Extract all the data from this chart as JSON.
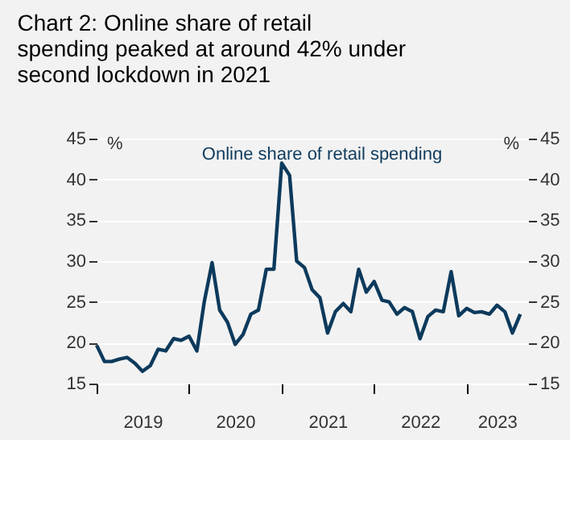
{
  "chart_data": {
    "type": "line",
    "title": "Chart 2: Online share of retail spending peaked at around 42% under second lockdown in 2021",
    "ylabel": "%",
    "y2label": "%",
    "x": [
      "2019-01",
      "2019-02",
      "2019-03",
      "2019-04",
      "2019-05",
      "2019-06",
      "2019-07",
      "2019-08",
      "2019-09",
      "2019-10",
      "2019-11",
      "2019-12",
      "2020-01",
      "2020-02",
      "2020-03",
      "2020-04",
      "2020-05",
      "2020-06",
      "2020-07",
      "2020-08",
      "2020-09",
      "2020-10",
      "2020-11",
      "2020-12",
      "2021-01",
      "2021-02",
      "2021-03",
      "2021-04",
      "2021-05",
      "2021-06",
      "2021-07",
      "2021-08",
      "2021-09",
      "2021-10",
      "2021-11",
      "2021-12",
      "2022-01",
      "2022-02",
      "2022-03",
      "2022-04",
      "2022-05",
      "2022-06",
      "2022-07",
      "2022-08",
      "2022-09",
      "2022-10",
      "2022-11",
      "2022-12",
      "2023-01",
      "2023-02",
      "2023-03",
      "2023-04",
      "2023-05",
      "2023-06",
      "2023-07",
      "2023-08"
    ],
    "series": [
      {
        "name": "Online share of retail spending",
        "color": "#0d3a5c",
        "values": [
          19.7,
          17.7,
          17.7,
          18.0,
          18.2,
          17.5,
          16.5,
          17.2,
          19.2,
          19.0,
          20.5,
          20.3,
          20.8,
          19.0,
          25.0,
          29.8,
          24.0,
          22.5,
          19.8,
          21.0,
          23.5,
          24.0,
          29.0,
          29.0,
          42.0,
          40.5,
          30.0,
          29.2,
          26.5,
          25.5,
          21.2,
          23.8,
          24.8,
          23.8,
          29.0,
          26.2,
          27.5,
          25.2,
          25.0,
          23.5,
          24.3,
          23.8,
          20.5,
          23.2,
          24.0,
          23.8,
          28.7,
          23.3,
          24.2,
          23.7,
          23.8,
          23.5,
          24.6,
          23.8,
          21.2,
          23.5
        ]
      }
    ],
    "xlim": [
      "2019-01",
      "2023-09"
    ],
    "xticks": [
      {
        "value": "2019-01",
        "label": null
      },
      {
        "value": "2019-07",
        "label": "2019"
      },
      {
        "value": "2020-01",
        "label": null
      },
      {
        "value": "2020-07",
        "label": "2020"
      },
      {
        "value": "2021-01",
        "label": null
      },
      {
        "value": "2021-07",
        "label": "2021"
      },
      {
        "value": "2022-01",
        "label": null
      },
      {
        "value": "2022-07",
        "label": "2022"
      },
      {
        "value": "2023-01",
        "label": null
      },
      {
        "value": "2023-05",
        "label": "2023"
      }
    ],
    "ylim": [
      15,
      45
    ],
    "yticks": [
      15,
      20,
      25,
      30,
      35,
      40,
      45
    ],
    "y2lim": [
      15,
      45
    ],
    "y2ticks": [
      15,
      20,
      25,
      30,
      35,
      40,
      45
    ],
    "grid": "y",
    "line_style": "solid",
    "marker": "none"
  }
}
